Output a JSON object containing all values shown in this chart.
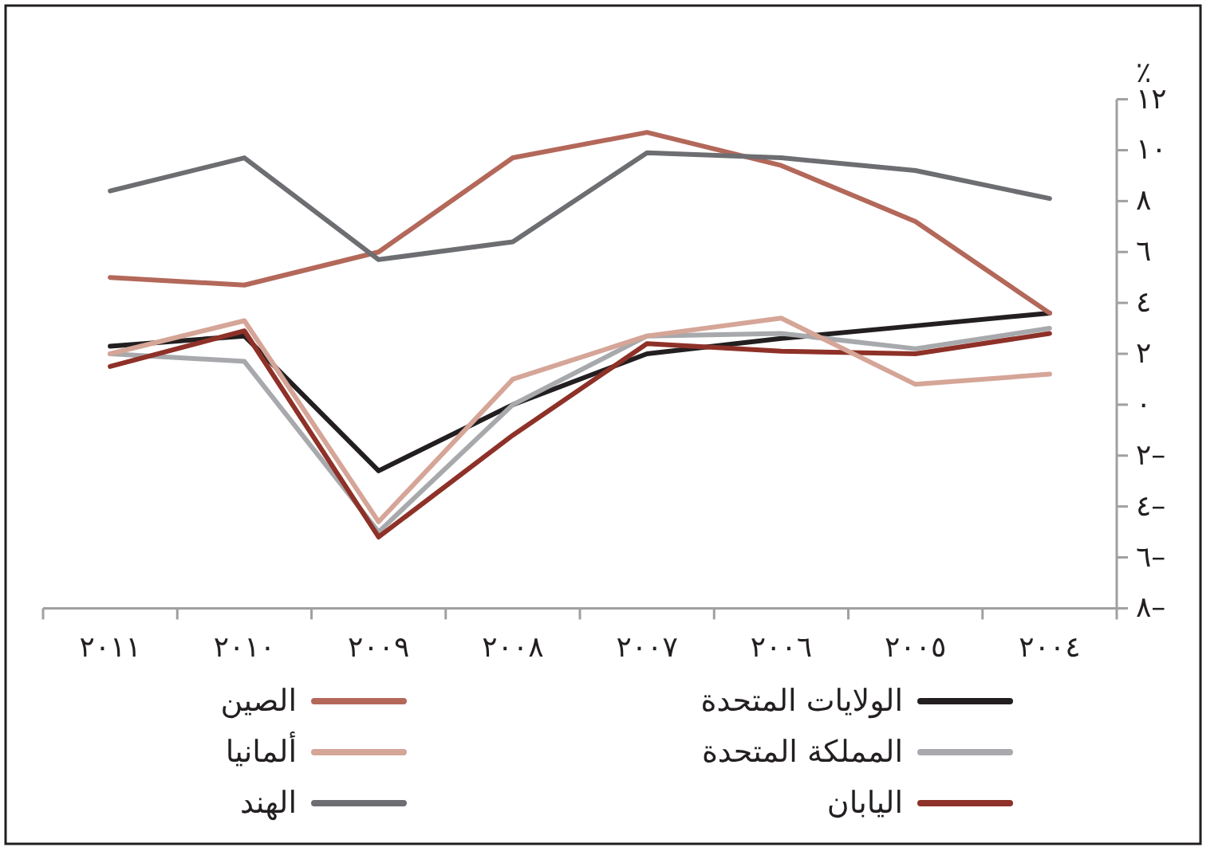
{
  "chart_data": {
    "type": "line",
    "ylabel": "٪",
    "categories": [
      "٢٠١١",
      "٢٠١٠",
      "٢٠٠٩",
      "٢٠٠٨",
      "٢٠٠٧",
      "٢٠٠٦",
      "٢٠٠٥",
      "٢٠٠٤"
    ],
    "series": [
      {
        "name": "الولايات المتحدة",
        "color": "#231f20",
        "values": [
          2.3,
          2.7,
          -2.6,
          0.0,
          2.0,
          2.6,
          3.1,
          3.6
        ]
      },
      {
        "name": "المملكة المتحدة",
        "color": "#a7a9ac",
        "values": [
          2.0,
          1.7,
          -5.0,
          0.0,
          2.7,
          2.8,
          2.2,
          3.0
        ]
      },
      {
        "name": "اليابان",
        "color": "#8e3128",
        "values": [
          1.5,
          2.9,
          -5.2,
          -1.2,
          2.4,
          2.1,
          2.0,
          2.8
        ]
      },
      {
        "name": "الصين",
        "color": "#b3685a",
        "values": [
          5.0,
          4.7,
          6.0,
          9.7,
          10.7,
          9.4,
          7.2,
          3.6
        ]
      },
      {
        "name": "ألمانيا",
        "color": "#d5a597",
        "values": [
          2.0,
          3.3,
          -4.6,
          1.0,
          2.7,
          3.4,
          0.8,
          1.2
        ]
      },
      {
        "name": "الهند",
        "color": "#6d6e71",
        "values": [
          8.4,
          9.7,
          5.7,
          6.4,
          9.9,
          9.7,
          9.2,
          8.1
        ]
      }
    ],
    "ylim": [
      -8,
      12
    ],
    "yticks": [
      {
        "value": 12,
        "label": "١٢"
      },
      {
        "value": 10,
        "label": "١٠"
      },
      {
        "value": 8,
        "label": "٨"
      },
      {
        "value": 6,
        "label": "٦"
      },
      {
        "value": 4,
        "label": "٤"
      },
      {
        "value": 2,
        "label": "٢"
      },
      {
        "value": 0,
        "label": "٠"
      },
      {
        "value": -2,
        "label": "٢–"
      },
      {
        "value": -4,
        "label": "٤–"
      },
      {
        "value": -6,
        "label": "٦–"
      },
      {
        "value": -8,
        "label": "٨–"
      }
    ],
    "legend": "bottom"
  }
}
